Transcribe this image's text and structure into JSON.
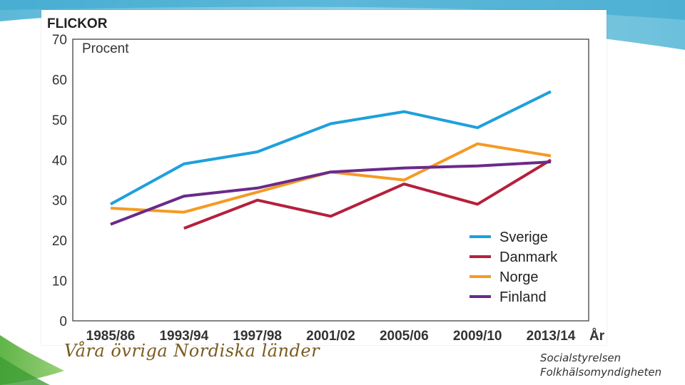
{
  "slide": {
    "footer_left": "Våra övriga Nordiska länder",
    "source_lines": [
      "Socialstyrelsen",
      "Folkhälsomyndigheten"
    ]
  },
  "chart_data": {
    "type": "line",
    "title": "FLICKOR",
    "ylabel": "Procent",
    "xlabel": "År",
    "categories": [
      "1985/86",
      "1993/94",
      "1997/98",
      "2001/02",
      "2005/06",
      "2009/10",
      "2013/14"
    ],
    "ylim": [
      0,
      70
    ],
    "yticks": [
      0,
      10,
      20,
      30,
      40,
      50,
      60,
      70
    ],
    "grid": false,
    "legend_position": "bottom-right",
    "series": [
      {
        "name": "Sverige",
        "color": "#1ea0dc",
        "values": [
          29,
          39,
          42,
          49,
          52,
          48,
          57
        ]
      },
      {
        "name": "Danmark",
        "color": "#b5203c",
        "values": [
          null,
          23,
          30,
          26,
          34,
          29,
          40
        ]
      },
      {
        "name": "Norge",
        "color": "#f59a23",
        "values": [
          28,
          27,
          32,
          37,
          35,
          44,
          41
        ]
      },
      {
        "name": "Finland",
        "color": "#6a2a8a",
        "values": [
          24,
          31,
          33,
          37,
          38,
          38.5,
          39.5
        ]
      }
    ]
  }
}
